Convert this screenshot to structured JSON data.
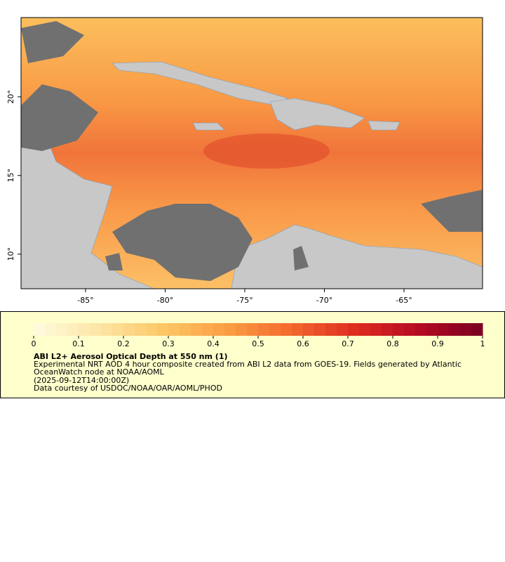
{
  "map": {
    "lonlim": [
      -89.05,
      -60.07
    ],
    "latlim": [
      7.8,
      25.04
    ],
    "lon_ticks": [
      {
        "value": -85,
        "label": "-85°"
      },
      {
        "value": -80,
        "label": "-80°"
      },
      {
        "value": -75,
        "label": "-75°"
      },
      {
        "value": -70,
        "label": "-70°"
      },
      {
        "value": -65,
        "label": "-65°"
      }
    ],
    "lat_ticks": [
      {
        "value": 20,
        "label": "20°"
      },
      {
        "value": 15,
        "label": "15°"
      },
      {
        "value": 10,
        "label": "10°"
      }
    ]
  },
  "colorbar": {
    "range": [
      0,
      1
    ],
    "ticks": [
      0,
      0.1,
      0.2,
      0.3,
      0.4,
      0.5,
      0.6,
      0.7,
      0.8,
      0.9,
      1
    ],
    "colors": [
      "#fffbe0",
      "#fde6a6",
      "#fdc867",
      "#fb9e43",
      "#f36a2e",
      "#df2c20",
      "#b50a22",
      "#7a0022"
    ]
  },
  "legend": {
    "title": "ABI L2+ Aerosol Optical Depth at 550 nm (1)",
    "lines": [
      "Experimental NRT AOD 4 hour composite created from ABI L2 data from GOES-19. Fields generated by Atlantic",
      "OceanWatch node at NOAA/AOML",
      "(2025-09-12T14:00:00Z)",
      "Data courtesy of USDOC/NOAA/OAR/AOML/PHOD"
    ]
  }
}
